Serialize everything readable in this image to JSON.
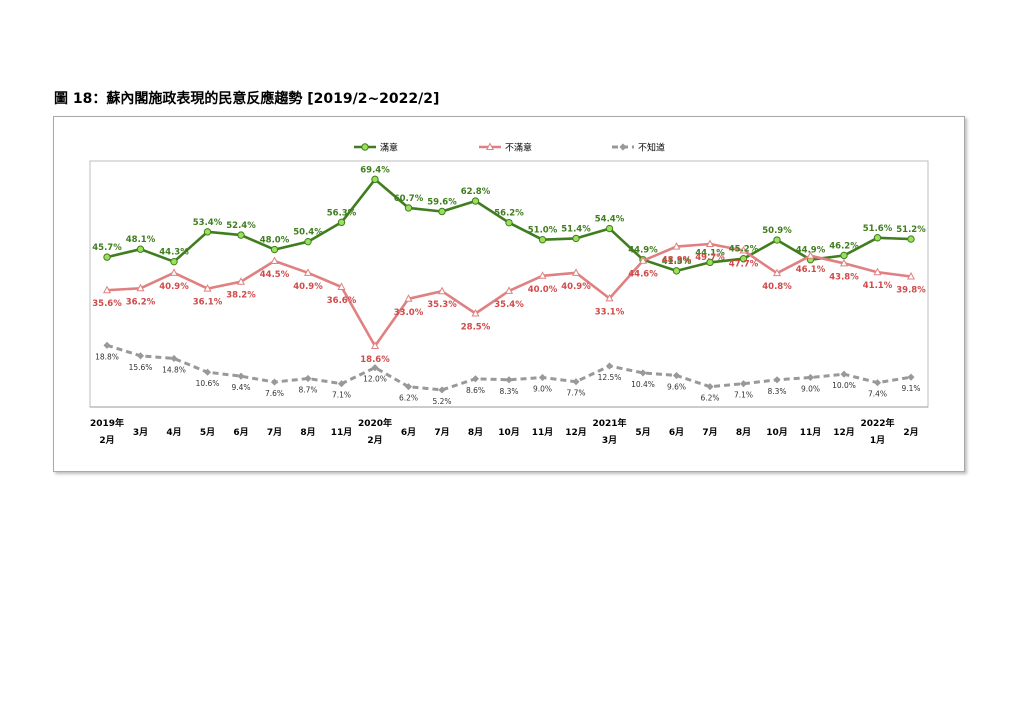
{
  "figure": {
    "title": "圖 18：蘇內閣施政表現的民意反應趨勢 [2019/2~2022/2]"
  },
  "colors": {
    "satisfied": "#3f7d1e",
    "satisfied_marker": "#9be05a",
    "dissatisfied": "#e08080",
    "dissatisfied_text": "#d04a4a",
    "unknown": "#999999"
  },
  "chart_data": {
    "type": "line",
    "title": "",
    "x": [
      {
        "year": "2019年",
        "month": "2月"
      },
      {
        "year": "",
        "month": "3月"
      },
      {
        "year": "",
        "month": "4月"
      },
      {
        "year": "",
        "month": "5月"
      },
      {
        "year": "",
        "month": "6月"
      },
      {
        "year": "",
        "month": "7月"
      },
      {
        "year": "",
        "month": "8月"
      },
      {
        "year": "",
        "month": "11月"
      },
      {
        "year": "2020年",
        "month": "2月"
      },
      {
        "year": "",
        "month": "6月"
      },
      {
        "year": "",
        "month": "7月"
      },
      {
        "year": "",
        "month": "8月"
      },
      {
        "year": "",
        "month": "10月"
      },
      {
        "year": "",
        "month": "11月"
      },
      {
        "year": "",
        "month": "12月"
      },
      {
        "year": "2021年",
        "month": "3月"
      },
      {
        "year": "",
        "month": "5月"
      },
      {
        "year": "",
        "month": "6月"
      },
      {
        "year": "",
        "month": "7月"
      },
      {
        "year": "",
        "month": "8月"
      },
      {
        "year": "",
        "month": "10月"
      },
      {
        "year": "",
        "month": "11月"
      },
      {
        "year": "",
        "month": "12月"
      },
      {
        "year": "2022年",
        "month": "1月"
      },
      {
        "year": "",
        "month": "2月"
      }
    ],
    "series": [
      {
        "name": "滿意",
        "values": [
          45.7,
          48.1,
          44.3,
          53.4,
          52.4,
          48.0,
          50.4,
          56.3,
          69.4,
          60.7,
          59.6,
          62.8,
          56.2,
          51.0,
          51.4,
          54.4,
          44.9,
          41.5,
          44.1,
          45.2,
          50.9,
          44.9,
          46.2,
          51.6,
          51.2
        ]
      },
      {
        "name": "不滿意",
        "values": [
          35.6,
          36.2,
          40.9,
          36.1,
          38.2,
          44.5,
          40.9,
          36.6,
          18.6,
          33.0,
          35.3,
          28.5,
          35.4,
          40.0,
          40.9,
          33.1,
          44.6,
          48.9,
          49.7,
          47.7,
          40.8,
          46.1,
          43.8,
          41.1,
          39.8
        ]
      },
      {
        "name": "不知道",
        "values": [
          18.8,
          15.6,
          14.8,
          10.6,
          9.4,
          7.6,
          8.7,
          7.1,
          12.0,
          6.2,
          5.2,
          8.6,
          8.3,
          9.0,
          7.7,
          12.5,
          10.4,
          9.6,
          6.2,
          7.1,
          8.3,
          9.0,
          10.0,
          7.4,
          9.1
        ]
      }
    ],
    "legend": "top",
    "grid": false
  }
}
